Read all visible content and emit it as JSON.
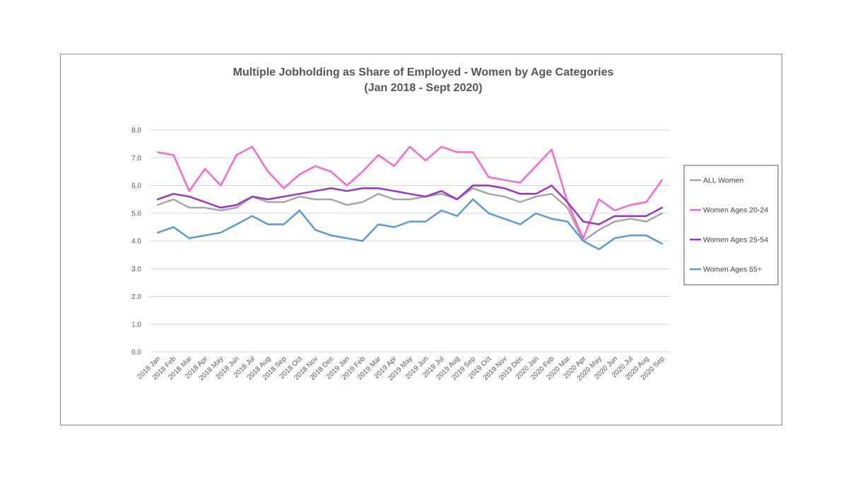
{
  "chart_data": {
    "type": "line",
    "title": "Multiple Jobholding as Share of Employed - Women by Age Categories",
    "subtitle": "(Jan 2018 - Sept 2020)",
    "xlabel": "",
    "ylabel": "",
    "ylim": [
      0,
      8
    ],
    "y_ticks": [
      "0.0",
      "1.0",
      "2.0",
      "3.0",
      "4.0",
      "5.0",
      "6.0",
      "7.0",
      "8.0"
    ],
    "grid": true,
    "legend_position": "right",
    "categories": [
      "2018 Jan",
      "2018 Feb",
      "2018 Mar",
      "2018 Apr",
      "2018 May",
      "2018 Jun",
      "2018 Jul",
      "2018 Aug",
      "2018 Sep",
      "2018 Oct",
      "2018 Nov",
      "2018 Dec",
      "2019 Jan",
      "2019 Feb",
      "2019 Mar",
      "2019 Apr",
      "2019 May",
      "2019 Jun",
      "2019 Jul",
      "2019 Aug",
      "2019 Sep",
      "2019 Oct",
      "2019 Nov",
      "2019 Dec",
      "2020 Jan",
      "2020 Feb",
      "2020 Mar",
      "2020 Apr",
      "2020 May",
      "2020 Jun",
      "2020 Jul",
      "2020 Aug",
      "2020 Sep"
    ],
    "series": [
      {
        "name": "ALL Women",
        "color": "#a6a6a6",
        "values": [
          5.3,
          5.5,
          5.2,
          5.2,
          5.1,
          5.2,
          5.6,
          5.4,
          5.4,
          5.6,
          5.5,
          5.5,
          5.3,
          5.4,
          5.7,
          5.5,
          5.5,
          5.6,
          5.7,
          5.5,
          5.9,
          5.7,
          5.6,
          5.4,
          5.6,
          5.7,
          5.2,
          4.0,
          4.4,
          4.7,
          4.8,
          4.7,
          5.0
        ]
      },
      {
        "name": "Women Ages 20-24",
        "color": "#ff66cc",
        "values": [
          7.2,
          7.1,
          5.8,
          6.6,
          6.0,
          7.1,
          7.4,
          6.5,
          5.9,
          6.4,
          6.7,
          6.5,
          6.0,
          6.5,
          7.1,
          6.7,
          7.4,
          6.9,
          7.4,
          7.2,
          7.2,
          6.3,
          6.2,
          6.1,
          6.7,
          7.3,
          5.4,
          4.1,
          5.5,
          5.1,
          5.3,
          5.4,
          6.2
        ]
      },
      {
        "name": "Women Ages 25-54",
        "color": "#9933cc",
        "values": [
          5.5,
          5.7,
          5.6,
          5.4,
          5.2,
          5.3,
          5.6,
          5.5,
          5.6,
          5.7,
          5.8,
          5.9,
          5.8,
          5.9,
          5.9,
          5.8,
          5.7,
          5.6,
          5.8,
          5.5,
          6.0,
          6.0,
          5.9,
          5.7,
          5.7,
          6.0,
          5.4,
          4.7,
          4.6,
          4.9,
          4.9,
          4.9,
          5.2
        ]
      },
      {
        "name": "Women Ages 55+",
        "color": "#5b9bd5",
        "values": [
          4.3,
          4.5,
          4.1,
          4.2,
          4.3,
          4.6,
          4.9,
          4.6,
          4.6,
          5.1,
          4.4,
          4.2,
          4.1,
          4.0,
          4.6,
          4.5,
          4.7,
          4.7,
          5.1,
          4.9,
          5.5,
          5.0,
          4.8,
          4.6,
          5.0,
          4.8,
          4.7,
          4.0,
          3.7,
          4.1,
          4.2,
          4.2,
          3.9
        ]
      }
    ]
  }
}
